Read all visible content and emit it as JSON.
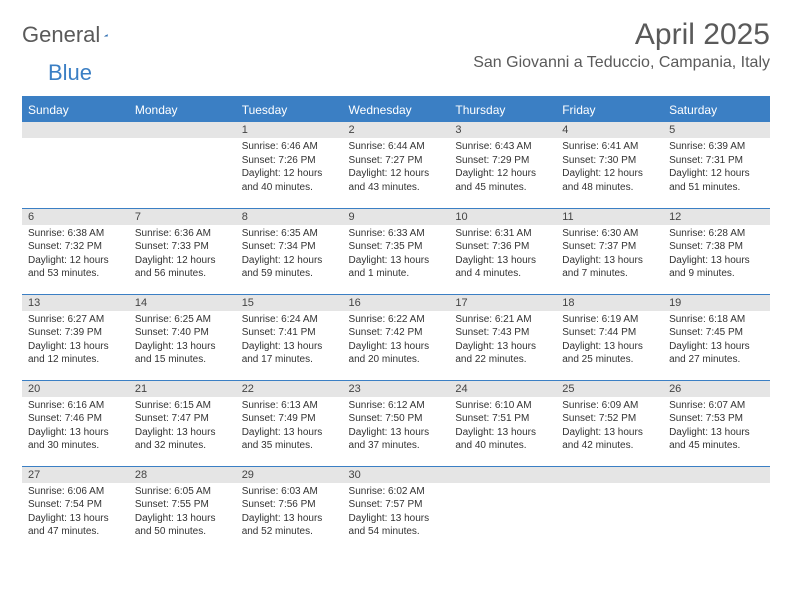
{
  "brand": {
    "name_gray": "General",
    "name_blue": "Blue"
  },
  "title": "April 2025",
  "location": "San Giovanni a Teduccio, Campania, Italy",
  "colors": {
    "accent": "#3b7fc4",
    "header_text": "#5a5a5a",
    "daynum_bg": "#e5e5e5",
    "body_text": "#333333",
    "background": "#ffffff"
  },
  "typography": {
    "title_fontsize": 30,
    "location_fontsize": 16,
    "weekday_fontsize": 12,
    "daynum_fontsize": 11,
    "cell_fontsize": 10
  },
  "weekdays": [
    "Sunday",
    "Monday",
    "Tuesday",
    "Wednesday",
    "Thursday",
    "Friday",
    "Saturday"
  ],
  "weeks": [
    [
      null,
      null,
      {
        "n": "1",
        "sunrise": "Sunrise: 6:46 AM",
        "sunset": "Sunset: 7:26 PM",
        "daylight": "Daylight: 12 hours and 40 minutes."
      },
      {
        "n": "2",
        "sunrise": "Sunrise: 6:44 AM",
        "sunset": "Sunset: 7:27 PM",
        "daylight": "Daylight: 12 hours and 43 minutes."
      },
      {
        "n": "3",
        "sunrise": "Sunrise: 6:43 AM",
        "sunset": "Sunset: 7:29 PM",
        "daylight": "Daylight: 12 hours and 45 minutes."
      },
      {
        "n": "4",
        "sunrise": "Sunrise: 6:41 AM",
        "sunset": "Sunset: 7:30 PM",
        "daylight": "Daylight: 12 hours and 48 minutes."
      },
      {
        "n": "5",
        "sunrise": "Sunrise: 6:39 AM",
        "sunset": "Sunset: 7:31 PM",
        "daylight": "Daylight: 12 hours and 51 minutes."
      }
    ],
    [
      {
        "n": "6",
        "sunrise": "Sunrise: 6:38 AM",
        "sunset": "Sunset: 7:32 PM",
        "daylight": "Daylight: 12 hours and 53 minutes."
      },
      {
        "n": "7",
        "sunrise": "Sunrise: 6:36 AM",
        "sunset": "Sunset: 7:33 PM",
        "daylight": "Daylight: 12 hours and 56 minutes."
      },
      {
        "n": "8",
        "sunrise": "Sunrise: 6:35 AM",
        "sunset": "Sunset: 7:34 PM",
        "daylight": "Daylight: 12 hours and 59 minutes."
      },
      {
        "n": "9",
        "sunrise": "Sunrise: 6:33 AM",
        "sunset": "Sunset: 7:35 PM",
        "daylight": "Daylight: 13 hours and 1 minute."
      },
      {
        "n": "10",
        "sunrise": "Sunrise: 6:31 AM",
        "sunset": "Sunset: 7:36 PM",
        "daylight": "Daylight: 13 hours and 4 minutes."
      },
      {
        "n": "11",
        "sunrise": "Sunrise: 6:30 AM",
        "sunset": "Sunset: 7:37 PM",
        "daylight": "Daylight: 13 hours and 7 minutes."
      },
      {
        "n": "12",
        "sunrise": "Sunrise: 6:28 AM",
        "sunset": "Sunset: 7:38 PM",
        "daylight": "Daylight: 13 hours and 9 minutes."
      }
    ],
    [
      {
        "n": "13",
        "sunrise": "Sunrise: 6:27 AM",
        "sunset": "Sunset: 7:39 PM",
        "daylight": "Daylight: 13 hours and 12 minutes."
      },
      {
        "n": "14",
        "sunrise": "Sunrise: 6:25 AM",
        "sunset": "Sunset: 7:40 PM",
        "daylight": "Daylight: 13 hours and 15 minutes."
      },
      {
        "n": "15",
        "sunrise": "Sunrise: 6:24 AM",
        "sunset": "Sunset: 7:41 PM",
        "daylight": "Daylight: 13 hours and 17 minutes."
      },
      {
        "n": "16",
        "sunrise": "Sunrise: 6:22 AM",
        "sunset": "Sunset: 7:42 PM",
        "daylight": "Daylight: 13 hours and 20 minutes."
      },
      {
        "n": "17",
        "sunrise": "Sunrise: 6:21 AM",
        "sunset": "Sunset: 7:43 PM",
        "daylight": "Daylight: 13 hours and 22 minutes."
      },
      {
        "n": "18",
        "sunrise": "Sunrise: 6:19 AM",
        "sunset": "Sunset: 7:44 PM",
        "daylight": "Daylight: 13 hours and 25 minutes."
      },
      {
        "n": "19",
        "sunrise": "Sunrise: 6:18 AM",
        "sunset": "Sunset: 7:45 PM",
        "daylight": "Daylight: 13 hours and 27 minutes."
      }
    ],
    [
      {
        "n": "20",
        "sunrise": "Sunrise: 6:16 AM",
        "sunset": "Sunset: 7:46 PM",
        "daylight": "Daylight: 13 hours and 30 minutes."
      },
      {
        "n": "21",
        "sunrise": "Sunrise: 6:15 AM",
        "sunset": "Sunset: 7:47 PM",
        "daylight": "Daylight: 13 hours and 32 minutes."
      },
      {
        "n": "22",
        "sunrise": "Sunrise: 6:13 AM",
        "sunset": "Sunset: 7:49 PM",
        "daylight": "Daylight: 13 hours and 35 minutes."
      },
      {
        "n": "23",
        "sunrise": "Sunrise: 6:12 AM",
        "sunset": "Sunset: 7:50 PM",
        "daylight": "Daylight: 13 hours and 37 minutes."
      },
      {
        "n": "24",
        "sunrise": "Sunrise: 6:10 AM",
        "sunset": "Sunset: 7:51 PM",
        "daylight": "Daylight: 13 hours and 40 minutes."
      },
      {
        "n": "25",
        "sunrise": "Sunrise: 6:09 AM",
        "sunset": "Sunset: 7:52 PM",
        "daylight": "Daylight: 13 hours and 42 minutes."
      },
      {
        "n": "26",
        "sunrise": "Sunrise: 6:07 AM",
        "sunset": "Sunset: 7:53 PM",
        "daylight": "Daylight: 13 hours and 45 minutes."
      }
    ],
    [
      {
        "n": "27",
        "sunrise": "Sunrise: 6:06 AM",
        "sunset": "Sunset: 7:54 PM",
        "daylight": "Daylight: 13 hours and 47 minutes."
      },
      {
        "n": "28",
        "sunrise": "Sunrise: 6:05 AM",
        "sunset": "Sunset: 7:55 PM",
        "daylight": "Daylight: 13 hours and 50 minutes."
      },
      {
        "n": "29",
        "sunrise": "Sunrise: 6:03 AM",
        "sunset": "Sunset: 7:56 PM",
        "daylight": "Daylight: 13 hours and 52 minutes."
      },
      {
        "n": "30",
        "sunrise": "Sunrise: 6:02 AM",
        "sunset": "Sunset: 7:57 PM",
        "daylight": "Daylight: 13 hours and 54 minutes."
      },
      null,
      null,
      null
    ]
  ]
}
